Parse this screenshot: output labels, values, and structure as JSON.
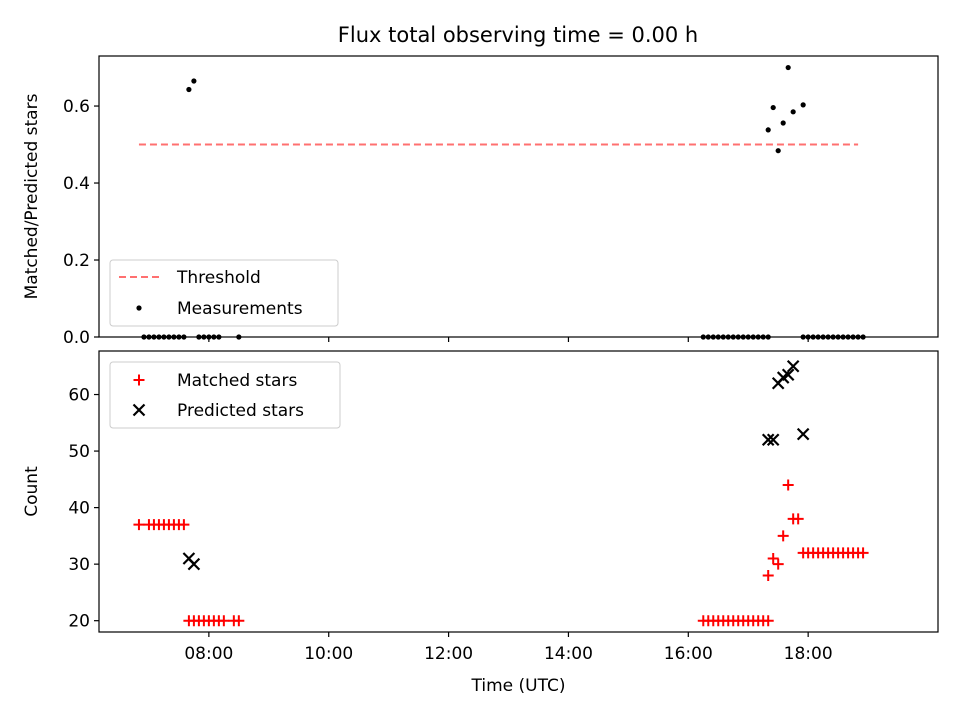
{
  "title": "Flux total observing time = 0.00 h",
  "chart_data": [
    {
      "type": "scatter",
      "panel": "top",
      "ylabel": "Matched/Predicted stars",
      "ylim": [
        0,
        0.73
      ],
      "yticks": [
        0.0,
        0.2,
        0.4,
        0.6
      ],
      "ytick_labels": [
        "0.0",
        "0.2",
        "0.4",
        "0.6"
      ],
      "grid": false,
      "legend_position": "lower-left",
      "threshold": {
        "name": "Threshold",
        "value": 0.5,
        "x_range": [
          "06:50",
          "18:50"
        ],
        "color": "#ff7070",
        "style": "dashed"
      },
      "series": [
        {
          "name": "Measurements",
          "color": "#000000",
          "marker": "dot",
          "points": [
            [
              "06:55",
              0.0
            ],
            [
              "07:00",
              0.0
            ],
            [
              "07:05",
              0.0
            ],
            [
              "07:10",
              0.0
            ],
            [
              "07:15",
              0.0
            ],
            [
              "07:20",
              0.0
            ],
            [
              "07:25",
              0.0
            ],
            [
              "07:30",
              0.0
            ],
            [
              "07:35",
              0.0
            ],
            [
              "07:40",
              0.643
            ],
            [
              "07:45",
              0.665
            ],
            [
              "07:50",
              0.0
            ],
            [
              "07:55",
              0.0
            ],
            [
              "08:00",
              0.0
            ],
            [
              "08:05",
              0.0
            ],
            [
              "08:10",
              0.0
            ],
            [
              "08:30",
              0.0
            ],
            [
              "16:15",
              0.0
            ],
            [
              "16:20",
              0.0
            ],
            [
              "16:25",
              0.0
            ],
            [
              "16:30",
              0.0
            ],
            [
              "16:35",
              0.0
            ],
            [
              "16:40",
              0.0
            ],
            [
              "16:45",
              0.0
            ],
            [
              "16:50",
              0.0
            ],
            [
              "16:55",
              0.0
            ],
            [
              "17:00",
              0.0
            ],
            [
              "17:05",
              0.0
            ],
            [
              "17:10",
              0.0
            ],
            [
              "17:15",
              0.0
            ],
            [
              "17:20",
              0.0
            ],
            [
              "17:20",
              0.538
            ],
            [
              "17:25",
              0.596
            ],
            [
              "17:30",
              0.484
            ],
            [
              "17:35",
              0.556
            ],
            [
              "17:40",
              0.7
            ],
            [
              "17:45",
              0.585
            ],
            [
              "17:55",
              0.603
            ],
            [
              "17:55",
              0.0
            ],
            [
              "18:00",
              0.0
            ],
            [
              "18:05",
              0.0
            ],
            [
              "18:10",
              0.0
            ],
            [
              "18:15",
              0.0
            ],
            [
              "18:20",
              0.0
            ],
            [
              "18:25",
              0.0
            ],
            [
              "18:30",
              0.0
            ],
            [
              "18:35",
              0.0
            ],
            [
              "18:40",
              0.0
            ],
            [
              "18:45",
              0.0
            ],
            [
              "18:50",
              0.0
            ],
            [
              "18:55",
              0.0
            ]
          ]
        }
      ]
    },
    {
      "type": "scatter",
      "panel": "bottom",
      "xlabel": "Time (UTC)",
      "ylabel": "Count",
      "xlim": [
        "06:10",
        "20:10"
      ],
      "xticks": [
        "08:00",
        "10:00",
        "12:00",
        "14:00",
        "16:00",
        "18:00"
      ],
      "xtick_labels": [
        "08:00",
        "10:00",
        "12:00",
        "14:00",
        "16:00",
        "18:00"
      ],
      "ylim": [
        18,
        67.7
      ],
      "yticks": [
        20,
        30,
        40,
        50,
        60
      ],
      "ytick_labels": [
        "20",
        "30",
        "40",
        "50",
        "60"
      ],
      "grid": false,
      "legend_position": "upper-left",
      "series": [
        {
          "name": "Matched stars",
          "color": "#ff0000",
          "marker": "plus",
          "points": [
            [
              "06:50",
              37
            ],
            [
              "07:00",
              37
            ],
            [
              "07:05",
              37
            ],
            [
              "07:10",
              37
            ],
            [
              "07:15",
              37
            ],
            [
              "07:20",
              37
            ],
            [
              "07:25",
              37
            ],
            [
              "07:30",
              37
            ],
            [
              "07:35",
              37
            ],
            [
              "07:40",
              20
            ],
            [
              "07:45",
              20
            ],
            [
              "07:50",
              20
            ],
            [
              "07:55",
              20
            ],
            [
              "08:00",
              20
            ],
            [
              "08:05",
              20
            ],
            [
              "08:10",
              20
            ],
            [
              "08:15",
              20
            ],
            [
              "08:25",
              20
            ],
            [
              "08:30",
              20
            ],
            [
              "16:15",
              20
            ],
            [
              "16:20",
              20
            ],
            [
              "16:25",
              20
            ],
            [
              "16:30",
              20
            ],
            [
              "16:35",
              20
            ],
            [
              "16:40",
              20
            ],
            [
              "16:45",
              20
            ],
            [
              "16:50",
              20
            ],
            [
              "16:55",
              20
            ],
            [
              "17:00",
              20
            ],
            [
              "17:05",
              20
            ],
            [
              "17:10",
              20
            ],
            [
              "17:15",
              20
            ],
            [
              "17:20",
              20
            ],
            [
              "17:20",
              28
            ],
            [
              "17:25",
              31
            ],
            [
              "17:30",
              30
            ],
            [
              "17:35",
              35
            ],
            [
              "17:40",
              44
            ],
            [
              "17:45",
              38
            ],
            [
              "17:50",
              38
            ],
            [
              "17:55",
              32
            ],
            [
              "18:00",
              32
            ],
            [
              "18:05",
              32
            ],
            [
              "18:10",
              32
            ],
            [
              "18:15",
              32
            ],
            [
              "18:20",
              32
            ],
            [
              "18:25",
              32
            ],
            [
              "18:30",
              32
            ],
            [
              "18:35",
              32
            ],
            [
              "18:40",
              32
            ],
            [
              "18:45",
              32
            ],
            [
              "18:50",
              32
            ],
            [
              "18:55",
              32
            ]
          ]
        },
        {
          "name": "Predicted stars",
          "color": "#000000",
          "marker": "x",
          "points": [
            [
              "07:40",
              31
            ],
            [
              "07:45",
              30
            ],
            [
              "17:20",
              52
            ],
            [
              "17:25",
              52
            ],
            [
              "17:30",
              62
            ],
            [
              "17:35",
              63
            ],
            [
              "17:40",
              63.5
            ],
            [
              "17:45",
              65
            ],
            [
              "17:55",
              53
            ]
          ]
        }
      ]
    }
  ]
}
